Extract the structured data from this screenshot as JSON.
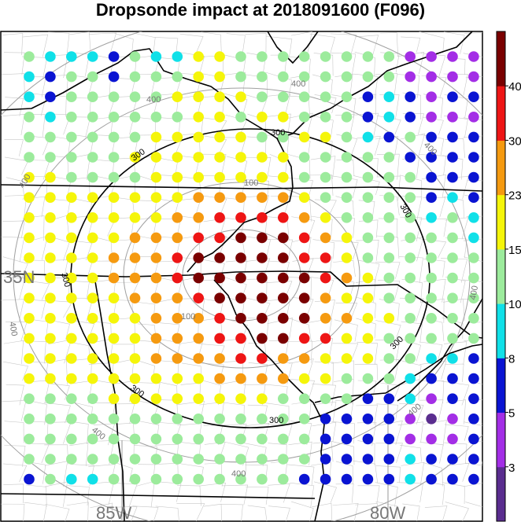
{
  "title": "Dropsonde impact at 2018091600 (F096)",
  "map": {
    "lat_label": "35N",
    "lon_labels": [
      "85W",
      "80W"
    ],
    "contour_label_100": "100",
    "contour_label_300": "300",
    "contour_label_400": "400"
  },
  "colorbar": {
    "labels": [
      "3",
      "5",
      "8",
      "10",
      "15",
      "23",
      "30",
      "40"
    ],
    "colors": [
      "#5a2d8f",
      "#a32ee6",
      "#0a14d2",
      "#10e0e8",
      "#9ceb9c",
      "#f5f50a",
      "#f59a10",
      "#ee1515",
      "#7a0000"
    ]
  },
  "dot_levels": {
    "P": "dark purple (<3)",
    "V": "purple (3-5)",
    "B": "blue (5-8)",
    "C": "cyan (8-10)",
    "G": "light green (10-15)",
    "Y": "yellow (15-23)",
    "O": "orange (23-30)",
    "R": "red (30-40)",
    "M": "maroon (>40)"
  },
  "grid": [
    "GCCCBGCCYYGGGGGGGGVVVVV",
    "CBGGBGGGYYGGGGGGGGVVVVV",
    "CBGGGGGYYYYGGGGGBCBVBBP",
    "GCGGGGGGYYGYYGGGBCBVVVV",
    "GGGGGGYYYYYGGYYGCBGBBBB",
    "GGGGGYYYYYYYYGGGGGBBBBB",
    "YYGGGGYYYYYYYGGGGGGBBBB",
    "YYYYYYYYOOOOOYGGGGGBCBB",
    "YYYYYYYOORRRROYGGGGCGCB",
    "YYYYYOOORRMMMROYGGGGGCB",
    "YYYYOOORMMMMMRRYGGGGGGC",
    "YYYYOOORMMMMMMROYGGGGGG",
    "YYYYYOOORMMMMMOYYGGGGGG",
    "YYYYYYOOORMMMMOOYYGGGGG",
    "YYYYYYOOORRMMRRYYGGGGGG",
    "YYYYYYOOOORROOYYYGGCCBB",
    "YYYYYYYYYOOOOYYGGGCBBBB",
    "GGGGYYYYYYYYGGGGBBCVBBB",
    "GGGGGGGGGGGGGGBBBBVPVBB",
    "GGGGGGGGGGGGGGBBBBVVVBB",
    "GGGGGGGGGGGGGGBBBBCBBBB",
    "BGCCGGGGGGGGGBBBBBCBBBP"
  ]
}
